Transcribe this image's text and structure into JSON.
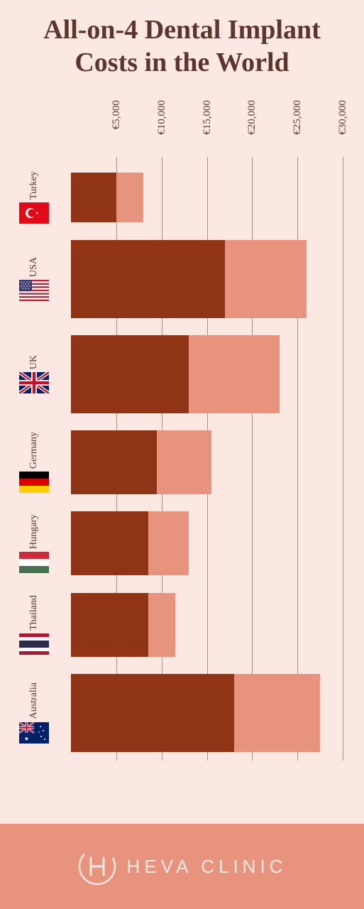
{
  "title": "All-on-4 Dental Implant Costs in the World",
  "chart": {
    "type": "bar",
    "orientation": "horizontal",
    "x_min": 0,
    "x_max": 30000,
    "ticks": [
      5000,
      10000,
      15000,
      20000,
      25000,
      30000
    ],
    "tick_labels": [
      "€5,000",
      "€10,000",
      "€15,000",
      "€20,000",
      "€25,000",
      "€30,000"
    ],
    "grid_color": "#a89088",
    "background_color": "#fce8e3",
    "bar_color_high": "#e8937e",
    "bar_color_low": "#8f3415",
    "axis_label_fontsize": 15,
    "axis_label_color": "#5c352d",
    "countries": [
      {
        "name": "Turkey",
        "low": 5000,
        "high": 8000,
        "flag": "turkey",
        "bar_height": "small"
      },
      {
        "name": "USA",
        "low": 17000,
        "high": 26000,
        "flag": "usa",
        "bar_height": "large"
      },
      {
        "name": "UK",
        "low": 13000,
        "high": 23000,
        "flag": "uk",
        "bar_height": "large"
      },
      {
        "name": "Germany",
        "low": 9500,
        "high": 15500,
        "flag": "germany",
        "bar_height": "normal"
      },
      {
        "name": "Hungary",
        "low": 8500,
        "high": 13000,
        "flag": "hungary",
        "bar_height": "normal"
      },
      {
        "name": "Thailand",
        "low": 8500,
        "high": 11500,
        "flag": "thailand",
        "bar_height": "normal"
      },
      {
        "name": "Australia",
        "low": 18000,
        "high": 27500,
        "flag": "australia",
        "bar_height": "large"
      }
    ]
  },
  "footer": {
    "brand": "HEVA CLINIC",
    "background_color": "#e8937e",
    "text_color": "#fce8e3",
    "fontsize": 26,
    "letter_spacing": 6
  }
}
